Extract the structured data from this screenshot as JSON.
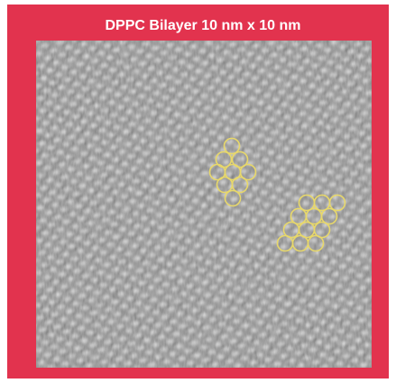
{
  "title": "DPPC Bilayer 10 nm x 10 nm"
}
